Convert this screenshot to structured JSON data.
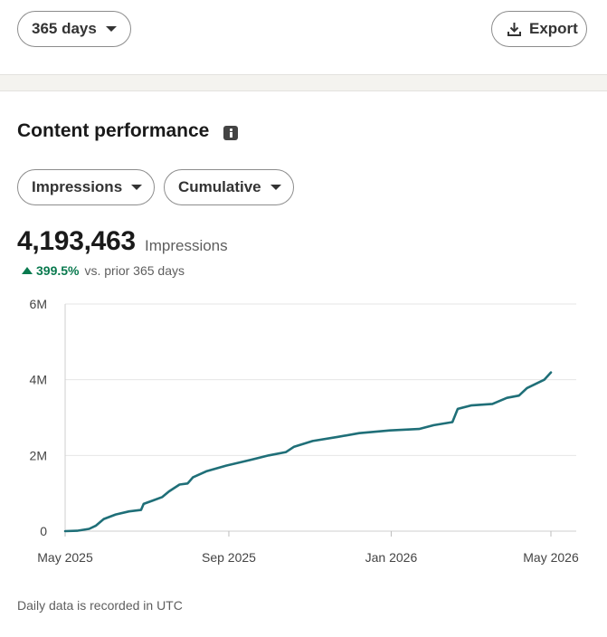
{
  "controls": {
    "range_label": "365 days",
    "export_label": "Export"
  },
  "section": {
    "title": "Content performance",
    "metric_label": "Impressions",
    "mode_label": "Cumulative"
  },
  "summary": {
    "value": "4,193,463",
    "unit": "Impressions",
    "change": "399.5%",
    "change_label": "vs. prior 365 days",
    "change_color": "#0a7a4f"
  },
  "footnote": "Daily data is recorded in UTC",
  "chart_data": {
    "type": "line",
    "title": "",
    "xlabel": "",
    "ylabel": "",
    "ylim": [
      0,
      6000000
    ],
    "y_ticks": [
      {
        "value": 0,
        "label": "0"
      },
      {
        "value": 2000000,
        "label": "2M"
      },
      {
        "value": 4000000,
        "label": "4M"
      },
      {
        "value": 6000000,
        "label": "6M"
      }
    ],
    "x_ticks": [
      {
        "date": "2025-05-01",
        "label": "May 2025"
      },
      {
        "date": "2025-09-01",
        "label": "Sep 2025"
      },
      {
        "date": "2026-01-01",
        "label": "Jan 2026"
      },
      {
        "date": "2026-05-01",
        "label": "May 2026"
      }
    ],
    "grid": true,
    "line_color": "#1f6f78",
    "series": [
      {
        "name": "",
        "points": [
          [
            "2025-05-01",
            0
          ],
          [
            "2025-05-10",
            10000
          ],
          [
            "2025-05-19",
            60000
          ],
          [
            "2025-05-24",
            140000
          ],
          [
            "2025-05-30",
            320000
          ],
          [
            "2025-06-08",
            440000
          ],
          [
            "2025-06-18",
            520000
          ],
          [
            "2025-06-27",
            560000
          ],
          [
            "2025-06-29",
            720000
          ],
          [
            "2025-07-06",
            810000
          ],
          [
            "2025-07-13",
            900000
          ],
          [
            "2025-07-18",
            1050000
          ],
          [
            "2025-07-26",
            1230000
          ],
          [
            "2025-08-01",
            1260000
          ],
          [
            "2025-08-05",
            1420000
          ],
          [
            "2025-08-15",
            1580000
          ],
          [
            "2025-08-30",
            1730000
          ],
          [
            "2025-09-17",
            1880000
          ],
          [
            "2025-10-01",
            2000000
          ],
          [
            "2025-10-14",
            2090000
          ],
          [
            "2025-10-20",
            2230000
          ],
          [
            "2025-11-03",
            2380000
          ],
          [
            "2025-11-22",
            2490000
          ],
          [
            "2025-12-08",
            2590000
          ],
          [
            "2025-12-31",
            2660000
          ],
          [
            "2026-01-22",
            2700000
          ],
          [
            "2026-02-02",
            2800000
          ],
          [
            "2026-02-16",
            2880000
          ],
          [
            "2026-02-20",
            3230000
          ],
          [
            "2026-03-02",
            3320000
          ],
          [
            "2026-03-18",
            3360000
          ],
          [
            "2026-03-29",
            3520000
          ],
          [
            "2026-04-07",
            3580000
          ],
          [
            "2026-04-13",
            3780000
          ],
          [
            "2026-04-26",
            4000000
          ],
          [
            "2026-05-01",
            4193463
          ]
        ]
      }
    ]
  }
}
